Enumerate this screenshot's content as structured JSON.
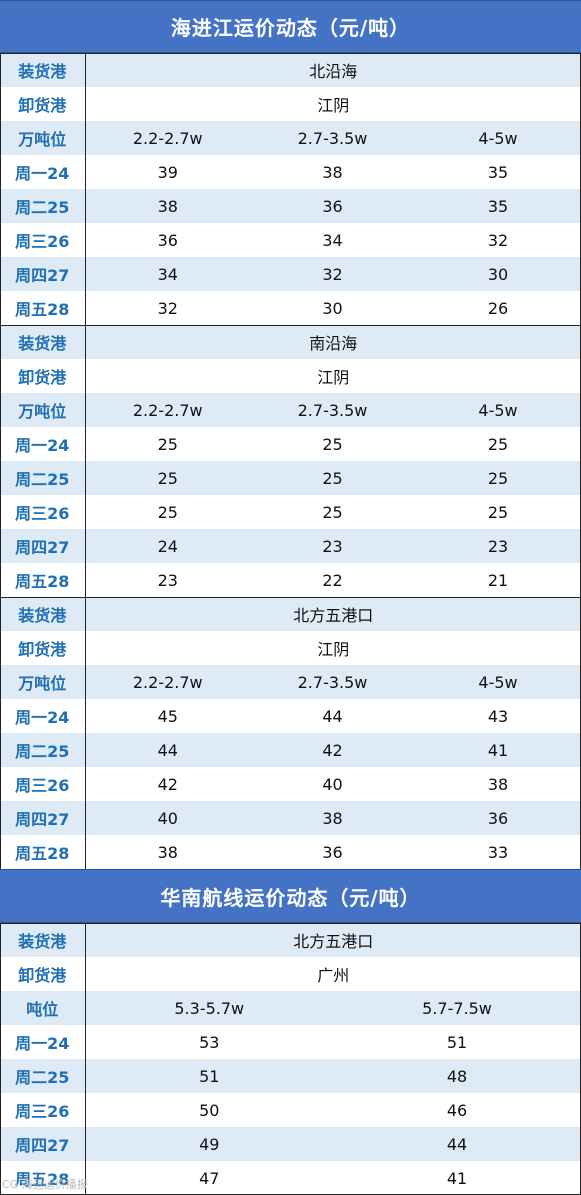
{
  "section1": {
    "title": "海进江运价动态（元/吨）",
    "blocks": [
      {
        "load_label": "装货港",
        "load_value": "北沿海",
        "unload_label": "卸货港",
        "unload_value": "江阴",
        "tonnage_label": "万吨位",
        "tonnage": [
          "2.2-2.7w",
          "2.7-3.5w",
          "4-5w"
        ],
        "rows": [
          {
            "day": "周一24",
            "v": [
              "39",
              "38",
              "35"
            ]
          },
          {
            "day": "周二25",
            "v": [
              "38",
              "36",
              "35"
            ]
          },
          {
            "day": "周三26",
            "v": [
              "36",
              "34",
              "32"
            ]
          },
          {
            "day": "周四27",
            "v": [
              "34",
              "32",
              "30"
            ]
          },
          {
            "day": "周五28",
            "v": [
              "32",
              "30",
              "26"
            ]
          }
        ]
      },
      {
        "load_label": "装货港",
        "load_value": "南沿海",
        "unload_label": "卸货港",
        "unload_value": "江阴",
        "tonnage_label": "万吨位",
        "tonnage": [
          "2.2-2.7w",
          "2.7-3.5w",
          "4-5w"
        ],
        "rows": [
          {
            "day": "周一24",
            "v": [
              "25",
              "25",
              "25"
            ]
          },
          {
            "day": "周二25",
            "v": [
              "25",
              "25",
              "25"
            ]
          },
          {
            "day": "周三26",
            "v": [
              "25",
              "25",
              "25"
            ]
          },
          {
            "day": "周四27",
            "v": [
              "24",
              "23",
              "23"
            ]
          },
          {
            "day": "周五28",
            "v": [
              "23",
              "22",
              "21"
            ]
          }
        ]
      },
      {
        "load_label": "装货港",
        "load_value": "北方五港口",
        "unload_label": "卸货港",
        "unload_value": "江阴",
        "tonnage_label": "万吨位",
        "tonnage": [
          "2.2-2.7w",
          "2.7-3.5w",
          "4-5w"
        ],
        "rows": [
          {
            "day": "周一24",
            "v": [
              "45",
              "44",
              "43"
            ]
          },
          {
            "day": "周二25",
            "v": [
              "44",
              "42",
              "41"
            ]
          },
          {
            "day": "周三26",
            "v": [
              "42",
              "40",
              "38"
            ]
          },
          {
            "day": "周四27",
            "v": [
              "40",
              "38",
              "36"
            ]
          },
          {
            "day": "周五28",
            "v": [
              "38",
              "36",
              "33"
            ]
          }
        ]
      }
    ]
  },
  "section2": {
    "title": "华南航线运价动态（元/吨）",
    "load_label": "装货港",
    "load_value": "北方五港口",
    "unload_label": "卸货港",
    "unload_value": "广州",
    "tonnage_label": "吨位",
    "tonnage": [
      "5.3-5.7w",
      "5.7-7.5w"
    ],
    "rows": [
      {
        "day": "周一24",
        "v": [
          "53",
          "51"
        ]
      },
      {
        "day": "周二25",
        "v": [
          "51",
          "48"
        ]
      },
      {
        "day": "周三26",
        "v": [
          "50",
          "46"
        ]
      },
      {
        "day": "周四27",
        "v": [
          "49",
          "44"
        ]
      },
      {
        "day": "周五28",
        "v": [
          "47",
          "41"
        ]
      }
    ]
  },
  "watermark": "CG 海运运价播报",
  "colors": {
    "header_bg": "#4472c4",
    "row_shade": "#deebf7",
    "label_text": "#1f6fb2"
  }
}
